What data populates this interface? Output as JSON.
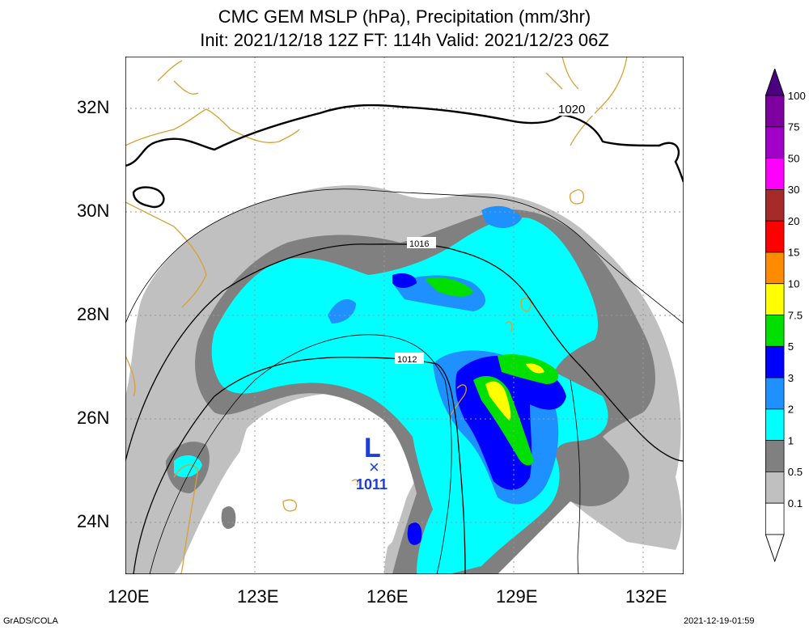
{
  "title_line1": "CMC GEM MSLP (hPa), Precipitation (mm/3hr)",
  "title_line2": "Init: 2021/12/18 12Z  FT: 114h  Valid: 2021/12/23 06Z",
  "lat_labels": [
    "32N",
    "30N",
    "28N",
    "26N",
    "24N"
  ],
  "lon_labels": [
    "120E",
    "123E",
    "126E",
    "129E",
    "132E"
  ],
  "isobar_labels": [
    "1020",
    "1016",
    "1012"
  ],
  "low_center": {
    "symbol": "L",
    "marker": "×",
    "pressure": "1011"
  },
  "colorbar": {
    "labels": [
      "100",
      "75",
      "50",
      "30",
      "20",
      "15",
      "10",
      "7.5",
      "5",
      "3",
      "2",
      "1",
      "0.5",
      "0.1"
    ],
    "colors": [
      "#7f00a0",
      "#a000c8",
      "#ff00ff",
      "#a52a2a",
      "#ff0000",
      "#ff8c00",
      "#ffff00",
      "#00e000",
      "#0000ff",
      "#1e90ff",
      "#00ffff",
      "#808080",
      "#c0c0c0",
      "#ffffff"
    ]
  },
  "footer_left": "GrADS/COLA",
  "footer_right": "2021-12-19-01:59",
  "colors": {
    "coast": "#d9a033",
    "low": "#1e3cdc",
    "grid": "#999999"
  }
}
